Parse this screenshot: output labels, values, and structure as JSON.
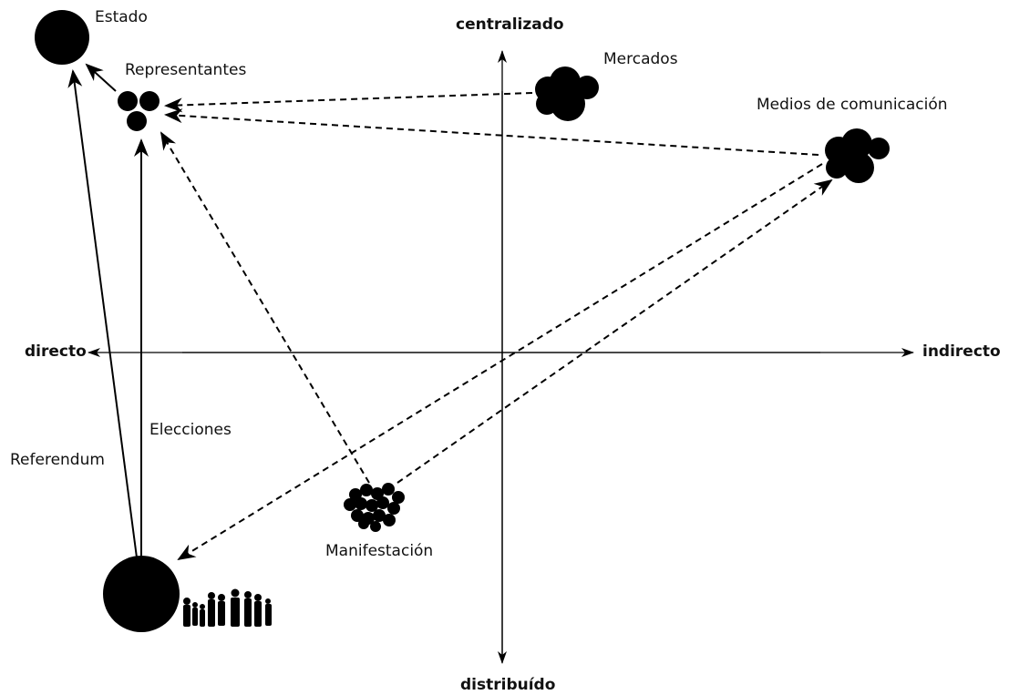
{
  "axes": {
    "top": "centralizado",
    "bottom": "distribuído",
    "left": "directo",
    "right": "indirecto"
  },
  "nodes": {
    "state": "Estado",
    "representatives": "Representantes",
    "markets": "Mercados",
    "media": "Medios de comunicación",
    "protest": "Manifestación"
  },
  "edges": {
    "referendum": "Referendum",
    "elections": "Elecciones"
  },
  "colors": {
    "ink": "#000000",
    "background": "#ffffff"
  },
  "icons": [
    "people-silhouettes-icon"
  ]
}
